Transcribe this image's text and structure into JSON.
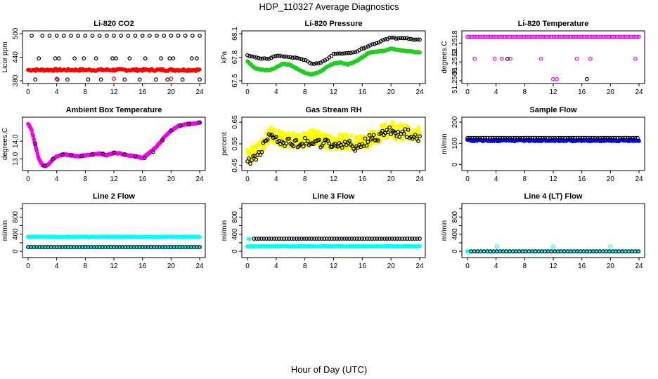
{
  "figure": {
    "title": "HDP_110327  Average Diagnostics",
    "xlabel": "Hour of Day (UTC)"
  },
  "chart_data": [
    {
      "type": "scatter",
      "title": "Li-820 CO2",
      "ylabel": "Licor ppm",
      "xlim": [
        0,
        24
      ],
      "xticks": [
        0,
        4,
        8,
        12,
        16,
        20,
        24
      ],
      "ylim": [
        380,
        500
      ],
      "yticks": [
        380,
        440,
        500
      ],
      "ytick_labels": [
        "380",
        "440",
        "500"
      ],
      "series": [
        {
          "color": "#ff0000",
          "filled": true,
          "pattern": "band",
          "y": [
            405,
            410
          ],
          "step": 0.17
        },
        {
          "color": "#000000",
          "filled": false,
          "pattern": "points",
          "x": [
            0.5,
            2,
            3,
            4,
            5,
            6,
            7,
            8,
            9,
            10,
            11,
            12,
            13,
            14,
            15,
            16,
            17,
            18,
            19,
            20,
            21,
            22,
            23,
            24,
            1.5,
            3.8,
            4.3,
            6.5,
            7.8,
            9.5,
            11.8,
            12.3,
            14.2,
            16.4,
            18.6,
            19.8,
            20.3,
            22.9,
            23.6,
            1,
            4.1,
            5.5,
            8.4,
            10.2,
            13.5,
            15.6,
            17.9,
            19.5,
            21.6,
            24
          ],
          "y": [
            495,
            495,
            495,
            495,
            495,
            495,
            495,
            495,
            495,
            495,
            495,
            495,
            495,
            495,
            495,
            495,
            495,
            495,
            495,
            495,
            495,
            495,
            495,
            495,
            437,
            437,
            437,
            437,
            437,
            437,
            437,
            437,
            437,
            437,
            437,
            437,
            437,
            437,
            437,
            383,
            383,
            383,
            383,
            383,
            383,
            383,
            383,
            383,
            383,
            383
          ]
        },
        {
          "color": "#ff0000",
          "filled": false,
          "pattern": "points",
          "x": [
            4,
            12,
            20
          ],
          "y": [
            385,
            385,
            385
          ]
        }
      ]
    },
    {
      "type": "scatter",
      "title": "Li-820 Pressure",
      "ylabel": "kPa",
      "xlim": [
        0,
        24
      ],
      "xticks": [
        0,
        4,
        8,
        12,
        16,
        20,
        24
      ],
      "ylim": [
        67.5,
        68.1
      ],
      "yticks": [
        67.5,
        67.8,
        68.1
      ],
      "ytick_labels": [
        "67.5",
        "67.8",
        "68.1"
      ],
      "series": [
        {
          "color": "#22cc22",
          "filled": true,
          "pattern": "curve",
          "x": [
            0,
            1,
            2,
            3,
            4,
            5,
            6,
            7,
            8,
            9,
            10,
            11,
            12,
            13,
            14,
            15,
            16,
            17,
            18,
            19,
            20,
            21,
            22,
            23,
            24
          ],
          "y": [
            67.75,
            67.66,
            67.64,
            67.63,
            67.67,
            67.72,
            67.7,
            67.65,
            67.6,
            67.58,
            67.61,
            67.67,
            67.72,
            67.73,
            67.71,
            67.74,
            67.8,
            67.86,
            67.87,
            67.88,
            67.91,
            67.89,
            67.88,
            67.87,
            67.86
          ]
        },
        {
          "color": "#000000",
          "filled": false,
          "pattern": "curve",
          "x": [
            0,
            1,
            2,
            3,
            4,
            5,
            6,
            7,
            8,
            9,
            10,
            11,
            12,
            13,
            14,
            15,
            16,
            17,
            18,
            19,
            20,
            21,
            22,
            23,
            24
          ],
          "y": [
            67.82,
            67.8,
            67.78,
            67.78,
            67.82,
            67.81,
            67.8,
            67.79,
            67.76,
            67.72,
            67.72,
            67.77,
            67.84,
            67.85,
            67.85,
            67.86,
            67.91,
            67.95,
            67.98,
            68.02,
            68.05,
            68.04,
            68.04,
            68.03,
            68.02
          ]
        }
      ]
    },
    {
      "type": "scatter",
      "title": "Li-820 Temperature",
      "ylabel": "degrees.C",
      "xlim": [
        0,
        24
      ],
      "xticks": [
        0,
        4,
        8,
        12,
        16,
        20,
        24
      ],
      "ylim": [
        51.2506,
        51.2521
      ],
      "yticks": [
        51.2506,
        51.2512,
        51.2518
      ],
      "ytick_labels": [
        "51.2506",
        "51.2512",
        "51.2518"
      ],
      "series": [
        {
          "color": "#ee00ee",
          "filled": false,
          "pattern": "band",
          "y": [
            51.252,
            51.252
          ],
          "step": 0.22
        },
        {
          "color": "#ee00ee",
          "filled": false,
          "pattern": "points",
          "x": [
            1,
            3.8,
            4.8,
            6,
            10.3,
            12,
            12.5,
            15.3,
            17.2,
            23.5
          ],
          "y": [
            51.2513,
            51.2513,
            51.2513,
            51.2513,
            51.2513,
            51.25065,
            51.25065,
            51.2513,
            51.2513,
            51.2513
          ]
        },
        {
          "color": "#000000",
          "filled": false,
          "pattern": "points",
          "x": [
            5.6,
            16.7
          ],
          "y": [
            51.2513,
            51.25065
          ]
        }
      ]
    },
    {
      "type": "scatter",
      "title": "Ambient Box Temperature",
      "ylabel": "degrees.C",
      "xlim": [
        0,
        24
      ],
      "xticks": [
        0,
        4,
        8,
        12,
        16,
        20,
        24
      ],
      "ylim": [
        12.5,
        15.2
      ],
      "yticks": [
        13,
        14
      ],
      "ytick_labels": [
        "13.0",
        "14.0"
      ],
      "series": [
        {
          "color": "#ee00ee",
          "filled": true,
          "pattern": "curve",
          "x": [
            0,
            0.5,
            1,
            1.5,
            2,
            2.5,
            3,
            3.5,
            4,
            5,
            6,
            7,
            8,
            9,
            10,
            11,
            12,
            13,
            14,
            15,
            16,
            17,
            18,
            19,
            20,
            21,
            22,
            23,
            24
          ],
          "y": [
            15.0,
            14.6,
            13.8,
            13.0,
            12.65,
            12.6,
            12.75,
            13.0,
            13.15,
            13.25,
            13.2,
            13.15,
            13.2,
            13.25,
            13.3,
            13.2,
            13.35,
            13.3,
            13.2,
            13.15,
            13.05,
            13.35,
            13.7,
            14.2,
            14.6,
            14.85,
            14.95,
            15.0,
            15.05
          ]
        },
        {
          "color": "#000000",
          "filled": false,
          "pattern": "points",
          "x": [
            1,
            2.3,
            3.5,
            4.8,
            6,
            7.5,
            9,
            10.5,
            12,
            13.5,
            15,
            16.3,
            17.5,
            18.8,
            20,
            21.3,
            22.5,
            24
          ],
          "y": [
            13.85,
            12.62,
            13.0,
            13.25,
            13.2,
            13.15,
            13.25,
            13.3,
            13.35,
            13.25,
            13.15,
            13.05,
            13.4,
            14.05,
            14.6,
            14.9,
            14.97,
            15.05
          ]
        }
      ]
    },
    {
      "type": "scatter",
      "title": "Gas Stream RH",
      "ylabel": "percent",
      "xlim": [
        0,
        24
      ],
      "xticks": [
        0,
        4,
        8,
        12,
        16,
        20,
        24
      ],
      "ylim": [
        0.44,
        0.66
      ],
      "yticks": [
        0.45,
        0.55,
        0.65
      ],
      "ytick_labels": [
        "0.45",
        "0.55",
        "0.65"
      ],
      "series": [
        {
          "color": "#ffff00",
          "filled": true,
          "pattern": "scatter",
          "x": [
            0,
            1,
            2,
            3,
            4,
            5,
            6,
            7,
            8,
            9,
            10,
            11,
            12,
            13,
            14,
            15,
            16,
            17,
            18,
            19,
            20,
            21,
            22,
            23,
            24
          ],
          "y": [
            0.49,
            0.51,
            0.54,
            0.6,
            0.58,
            0.57,
            0.57,
            0.56,
            0.57,
            0.58,
            0.57,
            0.56,
            0.56,
            0.56,
            0.56,
            0.55,
            0.56,
            0.57,
            0.58,
            0.61,
            0.62,
            0.6,
            0.61,
            0.6,
            0.59
          ],
          "spread": 0.035
        },
        {
          "color": "#000000",
          "filled": false,
          "pattern": "scatter",
          "x": [
            0,
            1,
            2,
            3,
            4,
            5,
            6,
            7,
            8,
            9,
            10,
            11,
            12,
            13,
            14,
            15,
            16,
            17,
            18,
            19,
            20,
            21,
            22,
            23,
            24
          ],
          "y": [
            0.47,
            0.48,
            0.52,
            0.6,
            0.57,
            0.56,
            0.56,
            0.55,
            0.56,
            0.56,
            0.55,
            0.55,
            0.54,
            0.55,
            0.55,
            0.53,
            0.55,
            0.57,
            0.58,
            0.6,
            0.61,
            0.6,
            0.6,
            0.59,
            0.58
          ],
          "spread": 0.02
        }
      ]
    },
    {
      "type": "scatter",
      "title": "Sample Flow",
      "ylabel": "ml/min",
      "xlim": [
        0,
        24
      ],
      "xticks": [
        0,
        4,
        8,
        12,
        16,
        20,
        24
      ],
      "ylim": [
        -15,
        210
      ],
      "yticks": [
        0,
        100,
        200
      ],
      "ytick_labels": [
        "0",
        "100",
        "200"
      ],
      "series": [
        {
          "color": "#0000ff",
          "filled": true,
          "pattern": "band",
          "y": [
            110,
            118
          ],
          "step": 0.12
        },
        {
          "color": "#000000",
          "filled": false,
          "pattern": "band",
          "y": [
            125,
            125
          ],
          "step": 0.35
        }
      ]
    },
    {
      "type": "scatter",
      "title": "Line 2 Flow",
      "ylabel": "ml/min",
      "xlim": [
        0,
        24
      ],
      "xticks": [
        0,
        4,
        8,
        12,
        16,
        20,
        24
      ],
      "ylim": [
        -80,
        1050
      ],
      "yticks": [
        0,
        200,
        400,
        600,
        800,
        1000
      ],
      "ytick_labels": [
        "0",
        "400",
        "800"
      ],
      "series": [
        {
          "color": "#00ffff",
          "filled": true,
          "pattern": "band",
          "y": [
            330,
            345
          ],
          "step": 0.12
        },
        {
          "color": "#00ffff",
          "filled": true,
          "pattern": "band",
          "y": [
            100,
            100
          ],
          "step": 0.2
        },
        {
          "color": "#000000",
          "filled": false,
          "pattern": "band",
          "y": [
            100,
            100
          ],
          "step": 0.4
        }
      ]
    },
    {
      "type": "scatter",
      "title": "Line 3 Flow",
      "ylabel": "ml/min",
      "xlim": [
        0,
        24
      ],
      "xticks": [
        0,
        4,
        8,
        12,
        16,
        20,
        24
      ],
      "ylim": [
        -80,
        1050
      ],
      "yticks": [
        0,
        200,
        400,
        600,
        800,
        1000
      ],
      "ytick_labels": [
        "0",
        "400",
        "800"
      ],
      "series": [
        {
          "color": "#00ffff",
          "filled": true,
          "pattern": "band",
          "y": [
            110,
            125
          ],
          "step": 0.12
        },
        {
          "color": "#00ffff",
          "filled": true,
          "pattern": "points",
          "x": [
            0.2
          ],
          "y": [
            290
          ]
        },
        {
          "color": "#000000",
          "filled": false,
          "pattern": "band",
          "y": [
            295,
            295
          ],
          "step": 0.35,
          "xstart": 0.9
        }
      ]
    },
    {
      "type": "scatter",
      "title": "Line 4 (LT) Flow",
      "ylabel": "ml/min",
      "xlim": [
        0,
        24
      ],
      "xticks": [
        0,
        4,
        8,
        12,
        16,
        20,
        24
      ],
      "ylim": [
        -80,
        1050
      ],
      "yticks": [
        0,
        200,
        400,
        600,
        800,
        1000
      ],
      "ytick_labels": [
        "0",
        "400",
        "800"
      ],
      "series": [
        {
          "color": "#00ffff",
          "filled": true,
          "pattern": "band",
          "y": [
            0,
            0
          ],
          "step": 0.3
        },
        {
          "color": "#00ffff",
          "filled": false,
          "pattern": "points",
          "x": [
            4.1,
            12,
            20
          ],
          "y": [
            110,
            110,
            110
          ]
        },
        {
          "color": "#000000",
          "filled": false,
          "pattern": "band",
          "y": [
            0,
            0
          ],
          "step": 0.45,
          "xstart": 0.5
        }
      ]
    }
  ]
}
